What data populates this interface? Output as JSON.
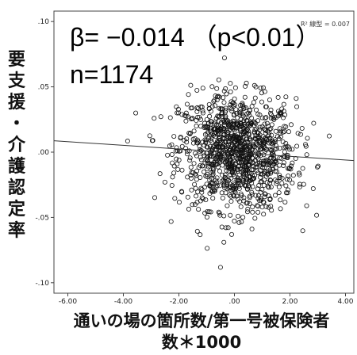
{
  "chart_data": {
    "type": "scatter",
    "title": "",
    "xlabel_line1": "通いの場の箇所数/第一号被保険者",
    "xlabel_line2": "数＊1000",
    "ylabel": "要支援・介護認定率",
    "xlim": [
      -6.5,
      4.3
    ],
    "ylim": [
      -0.108,
      0.108
    ],
    "x_ticks": [
      -6.0,
      -4.0,
      -2.0,
      0.0,
      2.0,
      4.0
    ],
    "x_tick_labels": [
      "-6.00",
      "-4.00",
      "-2.00",
      ".00",
      "2.00",
      "4.00"
    ],
    "y_ticks": [
      0.1,
      0.05,
      0.0,
      -0.05,
      -0.1
    ],
    "y_tick_labels": [
      ".10",
      ".05",
      ".00",
      "-.05",
      "-.10"
    ],
    "annotation_beta": "β= −0.014 （p<0.01）",
    "annotation_n": "n=1174",
    "r2_label": "R² 線型 = 0.007",
    "regression_line": {
      "intercept": -0.0004,
      "slope": -0.0014
    },
    "grid": false,
    "marker": "hollow-circle",
    "n_points": 1174
  }
}
